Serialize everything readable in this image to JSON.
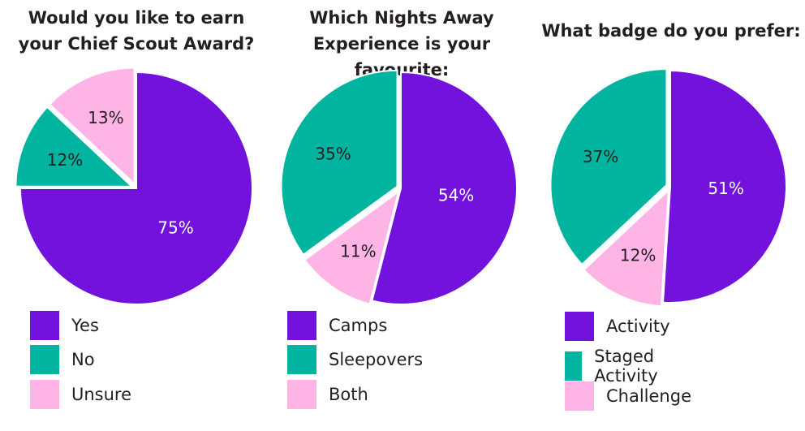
{
  "colors": {
    "purple": "#7212dc",
    "teal": "#00b4a0",
    "pink": "#ffb4e6",
    "label_dark": "#231f20",
    "label_light": "#ffffff"
  },
  "chart_data": [
    {
      "type": "pie",
      "title": "Would you like to earn your Chief Scout Award?",
      "title_lines": [
        "Would you like to earn",
        "your Chief Scout Award?"
      ],
      "slices": [
        {
          "label": "Yes",
          "value": 75,
          "text": "75%",
          "color": "#7212dc"
        },
        {
          "label": "No",
          "value": 12,
          "text": "12%",
          "color": "#00b4a0"
        },
        {
          "label": "Unsure",
          "value": 13,
          "text": "13%",
          "color": "#ffb4e6"
        }
      ],
      "legend": [
        "Yes",
        "No",
        "Unsure"
      ],
      "legend_position": "bottom"
    },
    {
      "type": "pie",
      "title": "Which Nights Away Experience is your favourite:",
      "title_lines": [
        "Which Nights Away",
        "Experience is your favourite:"
      ],
      "slices": [
        {
          "label": "Camps",
          "value": 54,
          "text": "54%",
          "color": "#7212dc"
        },
        {
          "label": "Both",
          "value": 11,
          "text": "11%",
          "color": "#ffb4e6"
        },
        {
          "label": "Sleepovers",
          "value": 35,
          "text": "35%",
          "color": "#00b4a0"
        }
      ],
      "legend": [
        "Camps",
        "Sleepovers",
        "Both"
      ],
      "legend_position": "bottom"
    },
    {
      "type": "pie",
      "title": "What badge do you prefer:",
      "title_lines": [
        "What badge do you prefer:"
      ],
      "slices": [
        {
          "label": "Activity",
          "value": 51,
          "text": "51%",
          "color": "#7212dc"
        },
        {
          "label": "Challenge",
          "value": 12,
          "text": "12%",
          "color": "#ffb4e6"
        },
        {
          "label": "Staged Activity",
          "value": 37,
          "text": "37%",
          "color": "#00b4a0"
        }
      ],
      "legend": [
        "Activity",
        "Staged Activity",
        "Challenge"
      ],
      "legend_position": "bottom"
    }
  ]
}
